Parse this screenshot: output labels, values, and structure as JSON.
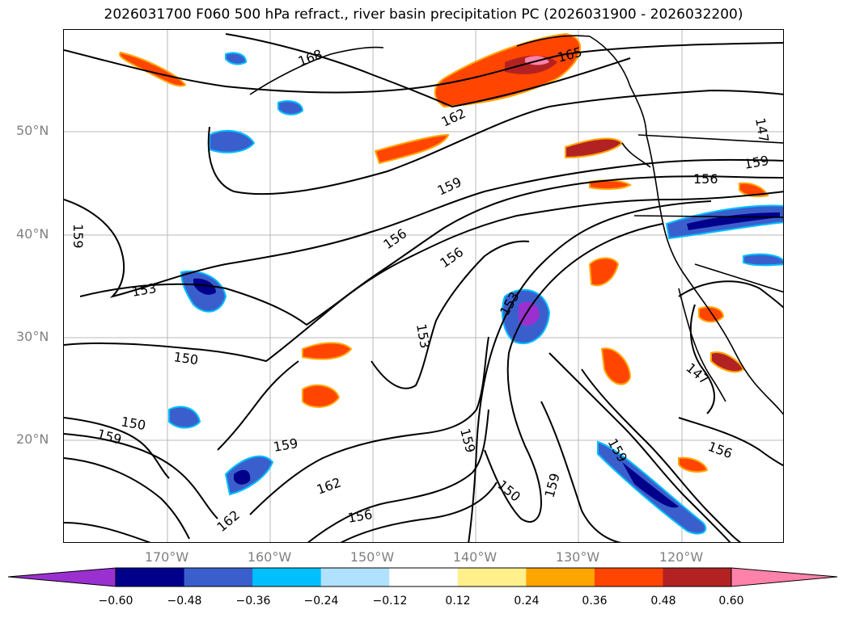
{
  "title": "2026031700 F060 500 hPa refract., river basin precipitation PC (2026031900 - 2026032200)",
  "lat_labels": [
    "50°N",
    "40°N",
    "30°N",
    "20°N"
  ],
  "lon_labels": [
    "170°W",
    "160°W",
    "150°W",
    "140°W",
    "130°W",
    "120°W"
  ],
  "contour_labels": [
    "168",
    "165",
    "162",
    "159",
    "156",
    "156",
    "159",
    "156",
    "153",
    "153",
    "150",
    "150",
    "159",
    "159",
    "153",
    "159",
    "162",
    "156",
    "162",
    "150",
    "159",
    "159",
    "156",
    "147",
    "147",
    "159",
    "156"
  ],
  "colorbar": {
    "ticks": [
      "−0.60",
      "−0.48",
      "−0.36",
      "−0.24",
      "−0.12",
      "0.12",
      "0.24",
      "0.36",
      "0.48",
      "0.60"
    ],
    "colors": [
      "#9b30d0",
      "#00008b",
      "#3a5fcd",
      "#00bfff",
      "#b0e2ff",
      "#ffffff",
      "#fff08c",
      "#ffa500",
      "#ff4500",
      "#b22222",
      "#ff82ab"
    ]
  }
}
